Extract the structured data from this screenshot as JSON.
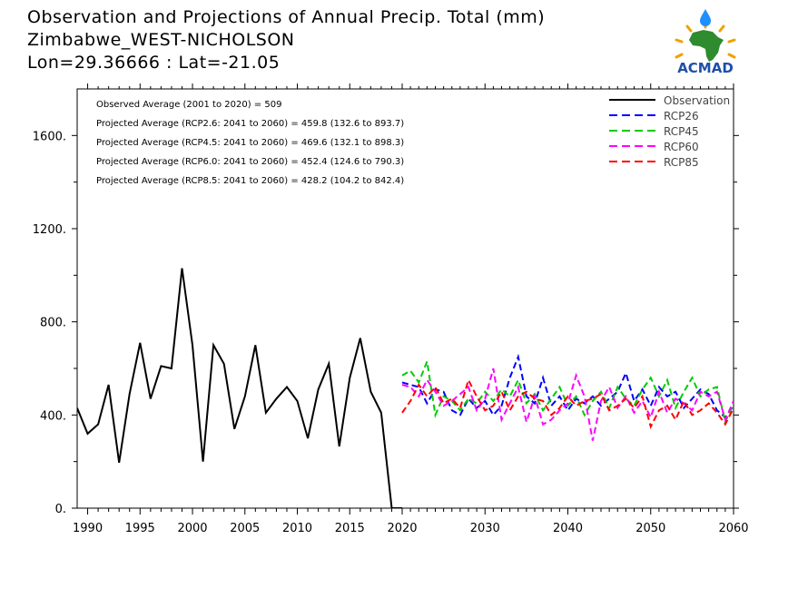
{
  "header": {
    "title_line1": "Observation and Projections of Annual Precip. Total (mm)",
    "title_line2": "Zimbabwe_WEST-NICHOLSON",
    "title_line3": "Lon=29.36666 : Lat=-21.05"
  },
  "logo": {
    "text": "ACMAD",
    "colors": {
      "africa": "#2e8b2e",
      "drop": "#1e90ff",
      "rays": "#f0a000",
      "text": "#1e4fa8"
    }
  },
  "annotations": [
    "Observed Average (2001 to 2020) = 509",
    "Projected Average (RCP2.6: 2041 to 2060) = 459.8 (132.6 to 893.7)",
    "Projected Average (RCP4.5: 2041 to 2060) = 469.6 (132.1 to 898.3)",
    "Projected Average (RCP6.0: 2041 to 2060) = 452.4 (124.6 to 790.3)",
    "Projected Average (RCP8.5: 2041 to 2060) = 428.2 (104.2 to 842.4)"
  ],
  "chart_data": {
    "type": "line",
    "xlim": [
      1989,
      2060
    ],
    "ylim": [
      0,
      1800
    ],
    "x_ticks": [
      1990,
      1995,
      2000,
      2005,
      2010,
      2015,
      2020,
      2030,
      2040,
      2050,
      2060
    ],
    "x_tick_labels": [
      "1990",
      "1995",
      "2000",
      "2005",
      "2010",
      "2015",
      "2020",
      "2030",
      "2040",
      "2050",
      "2060"
    ],
    "y_ticks": [
      0,
      400,
      800,
      1200,
      1600
    ],
    "y_tick_labels": [
      "0.",
      "400.",
      "800.",
      "1200.",
      "1600."
    ],
    "legend_position": "top-right",
    "series": [
      {
        "name": "Observation",
        "color": "#000000",
        "dash": "solid",
        "x": [
          1989,
          1990,
          1991,
          1992,
          1993,
          1994,
          1995,
          1996,
          1997,
          1998,
          1999,
          2000,
          2001,
          2002,
          2003,
          2004,
          2005,
          2006,
          2007,
          2008,
          2009,
          2010,
          2011,
          2012,
          2013,
          2014,
          2015,
          2016,
          2017,
          2018,
          2019,
          2020
        ],
        "values": [
          430,
          320,
          360,
          530,
          195,
          490,
          710,
          470,
          610,
          600,
          1030,
          700,
          200,
          700,
          620,
          340,
          480,
          700,
          410,
          470,
          520,
          460,
          300,
          510,
          620,
          265,
          560,
          730,
          500,
          410,
          0,
          0
        ]
      },
      {
        "name": "RCP26",
        "color": "#0000ff",
        "dash": "dashed",
        "x": [
          2020,
          2021,
          2022,
          2023,
          2024,
          2025,
          2026,
          2027,
          2028,
          2029,
          2030,
          2031,
          2032,
          2033,
          2034,
          2035,
          2036,
          2037,
          2038,
          2039,
          2040,
          2041,
          2042,
          2043,
          2044,
          2045,
          2046,
          2047,
          2048,
          2049,
          2050,
          2051,
          2052,
          2053,
          2054,
          2055,
          2056,
          2057,
          2058,
          2059,
          2060
        ],
        "values": [
          540,
          530,
          520,
          450,
          510,
          500,
          420,
          400,
          470,
          430,
          460,
          400,
          440,
          560,
          650,
          480,
          450,
          560,
          440,
          480,
          420,
          470,
          450,
          480,
          440,
          470,
          500,
          580,
          460,
          510,
          440,
          520,
          480,
          500,
          430,
          470,
          510,
          490,
          420,
          390,
          440
        ]
      },
      {
        "name": "RCP45",
        "color": "#00cc00",
        "dash": "dashed",
        "x": [
          2020,
          2021,
          2022,
          2023,
          2024,
          2025,
          2026,
          2027,
          2028,
          2029,
          2030,
          2031,
          2032,
          2033,
          2034,
          2035,
          2036,
          2037,
          2038,
          2039,
          2040,
          2041,
          2042,
          2043,
          2044,
          2045,
          2046,
          2047,
          2048,
          2049,
          2050,
          2051,
          2052,
          2053,
          2054,
          2055,
          2056,
          2057,
          2058,
          2059,
          2060
        ],
        "values": [
          570,
          590,
          540,
          630,
          400,
          480,
          460,
          420,
          470,
          450,
          500,
          460,
          510,
          480,
          550,
          450,
          490,
          420,
          470,
          520,
          440,
          480,
          400,
          460,
          500,
          430,
          520,
          470,
          440,
          510,
          560,
          480,
          550,
          430,
          500,
          560,
          480,
          510,
          520,
          370,
          450
        ]
      },
      {
        "name": "RCP60",
        "color": "#ff00ff",
        "dash": "dashed",
        "x": [
          2020,
          2021,
          2022,
          2023,
          2024,
          2025,
          2026,
          2027,
          2028,
          2029,
          2030,
          2031,
          2032,
          2033,
          2034,
          2035,
          2036,
          2037,
          2038,
          2039,
          2040,
          2041,
          2042,
          2043,
          2044,
          2045,
          2046,
          2047,
          2048,
          2049,
          2050,
          2051,
          2052,
          2053,
          2054,
          2055,
          2056,
          2057,
          2058,
          2059,
          2060
        ],
        "values": [
          530,
          520,
          480,
          550,
          500,
          440,
          460,
          490,
          520,
          420,
          470,
          600,
          380,
          450,
          520,
          370,
          480,
          360,
          380,
          420,
          450,
          570,
          480,
          290,
          460,
          520,
          430,
          480,
          410,
          460,
          390,
          500,
          410,
          470,
          450,
          420,
          500,
          480,
          500,
          380,
          460
        ]
      },
      {
        "name": "RCP85",
        "color": "#ff0000",
        "dash": "dashed",
        "x": [
          2020,
          2021,
          2022,
          2023,
          2024,
          2025,
          2026,
          2027,
          2028,
          2029,
          2030,
          2031,
          2032,
          2033,
          2034,
          2035,
          2036,
          2037,
          2038,
          2039,
          2040,
          2041,
          2042,
          2043,
          2044,
          2045,
          2046,
          2047,
          2048,
          2049,
          2050,
          2051,
          2052,
          2053,
          2054,
          2055,
          2056,
          2057,
          2058,
          2059,
          2060
        ],
        "values": [
          410,
          460,
          530,
          480,
          520,
          450,
          470,
          430,
          550,
          480,
          420,
          440,
          500,
          420,
          480,
          500,
          470,
          460,
          400,
          430,
          480,
          440,
          460,
          470,
          490,
          420,
          440,
          470,
          430,
          480,
          350,
          420,
          440,
          380,
          460,
          400,
          420,
          450,
          410,
          360,
          430
        ]
      }
    ]
  }
}
